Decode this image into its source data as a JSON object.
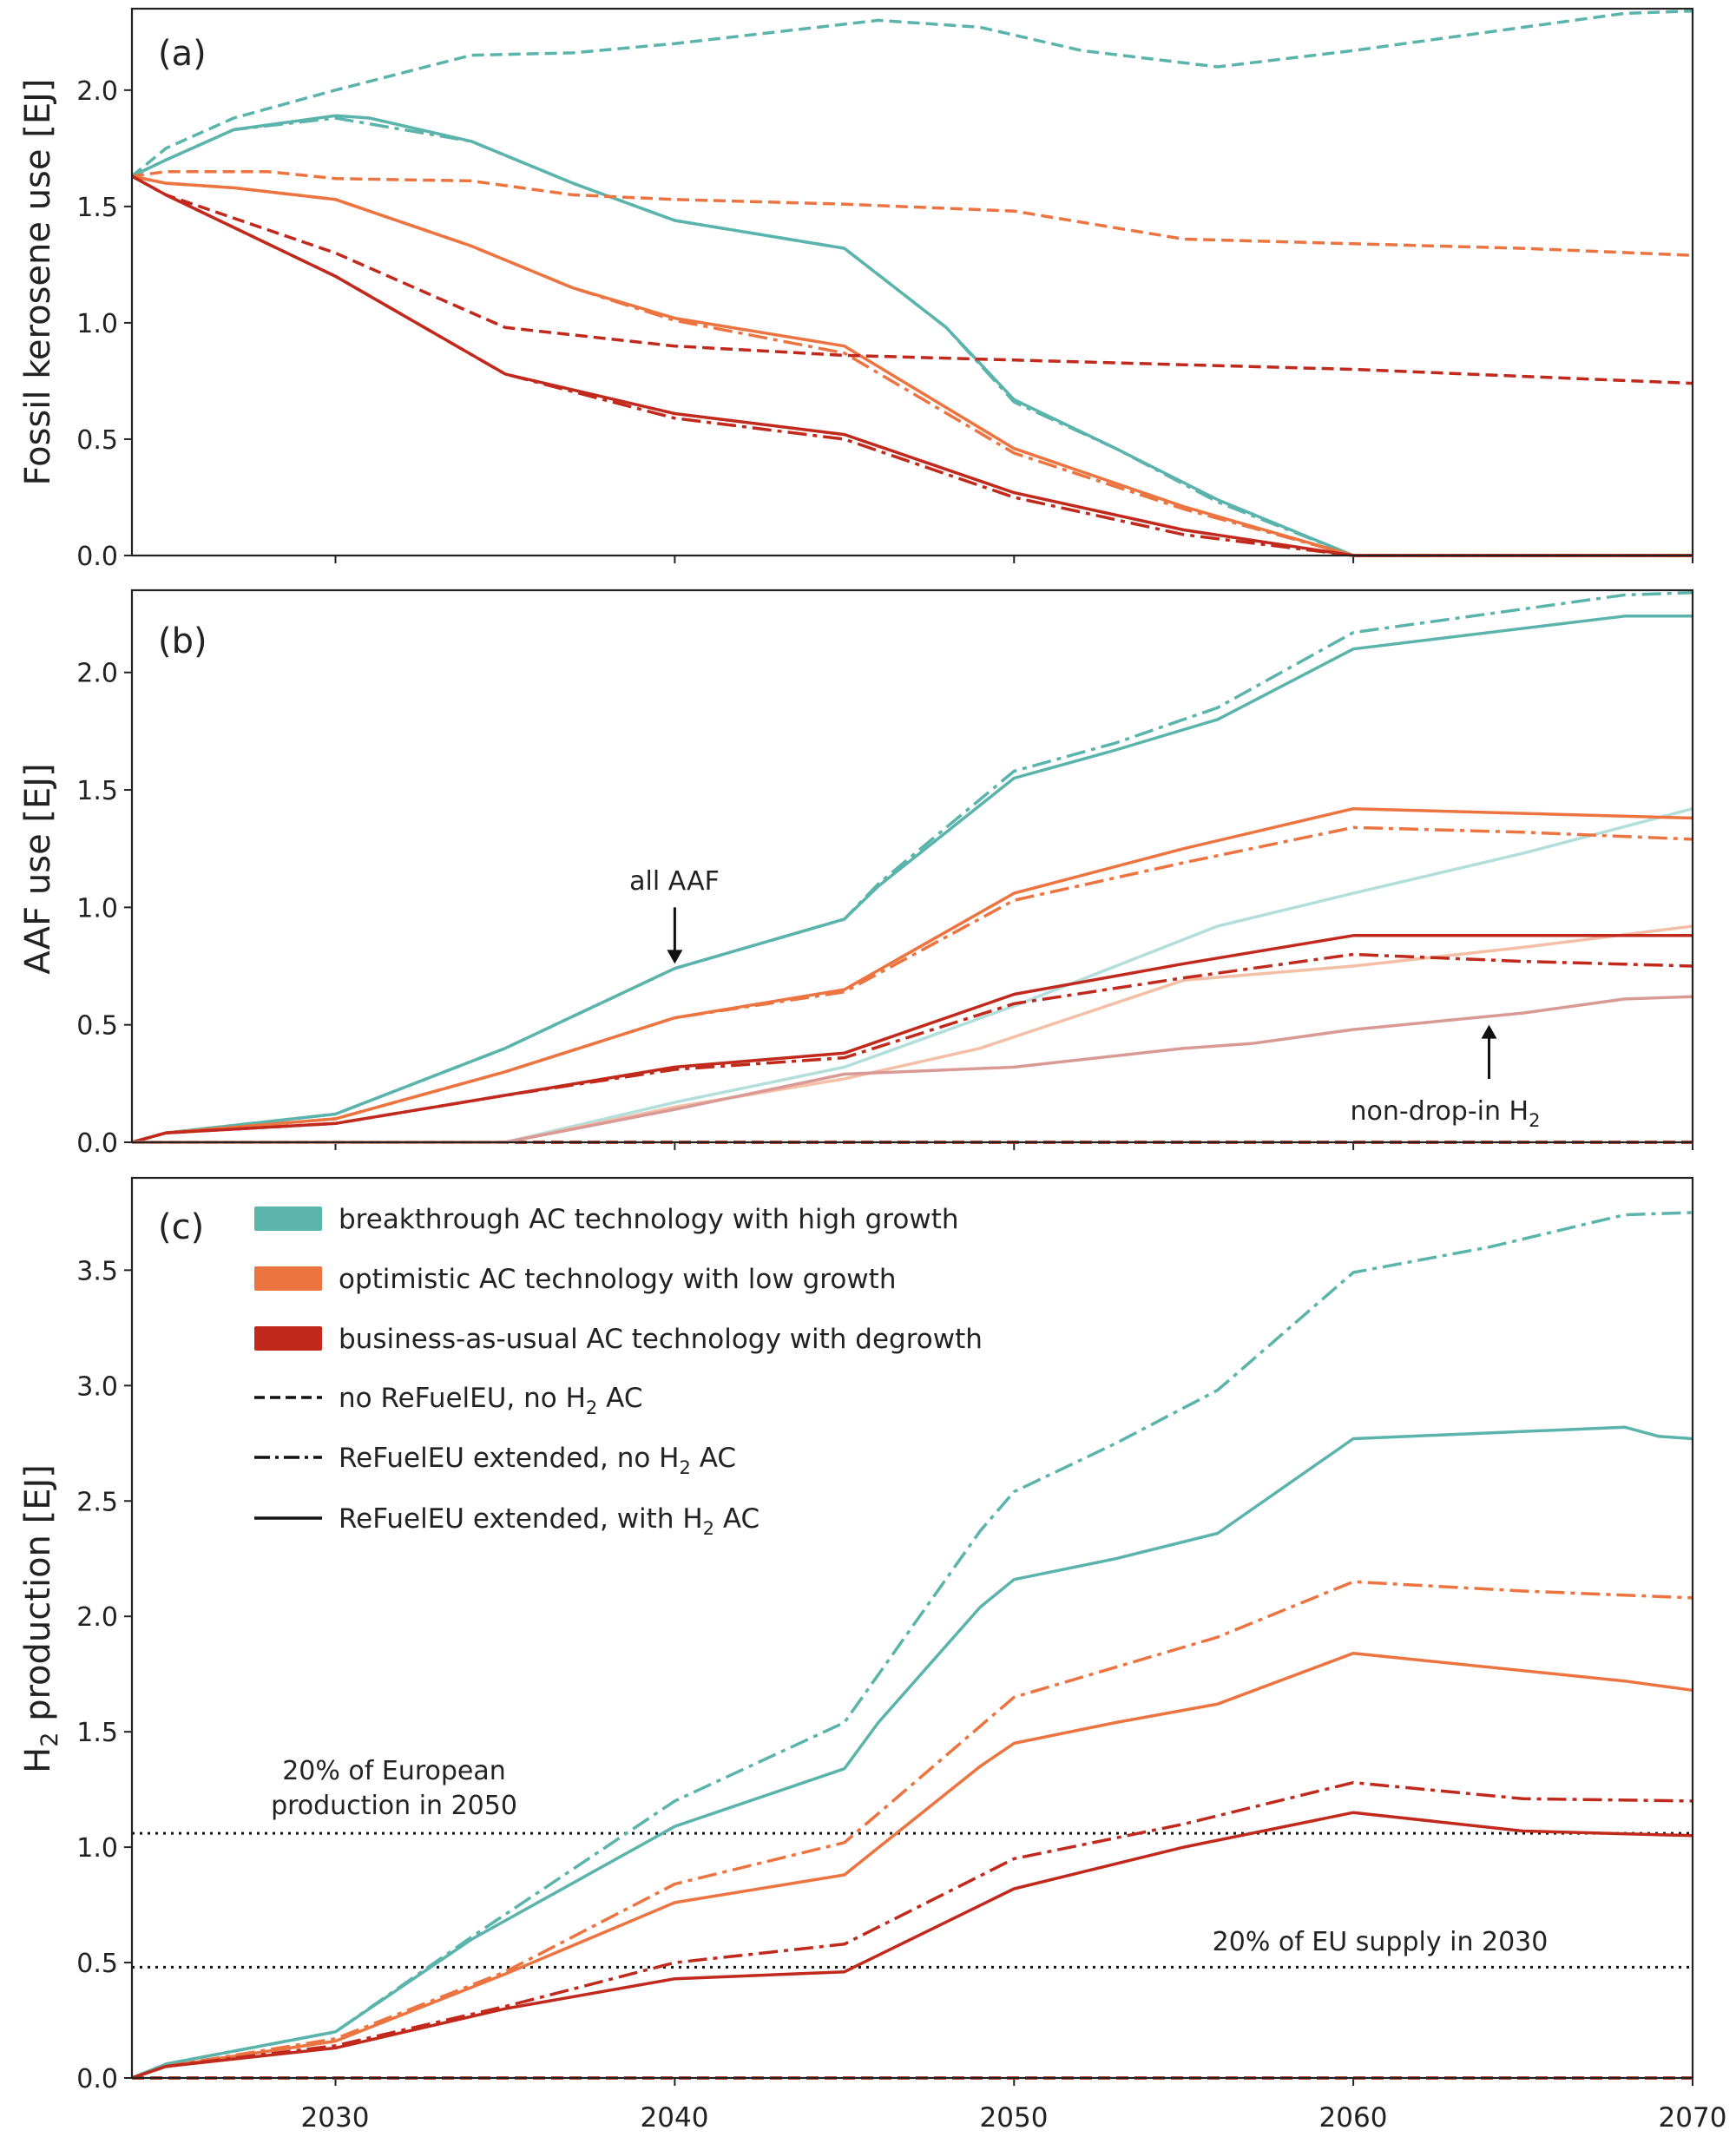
{
  "colors": {
    "breakthrough": "#5ab4ac",
    "breakthrough_faded": "#b2dedb",
    "optimistic": "#ec7440",
    "optimistic_faded": "#f4bfa6",
    "bau": "#c0291c",
    "bau_faded": "#d99a96",
    "axis": "#222222"
  },
  "x_tick_labels": [
    "2030",
    "2040",
    "2050",
    "2060",
    "2070"
  ],
  "legend": {
    "scenarios": [
      {
        "key": "breakthrough",
        "label": "breakthrough AC technology with high growth"
      },
      {
        "key": "optimistic",
        "label": "optimistic AC technology with low growth"
      },
      {
        "key": "bau",
        "label": "business-as-usual AC technology with degrowth"
      }
    ],
    "line_styles": [
      {
        "style": "dashed",
        "label_pre": "no ReFuelEU, no H",
        "label_sub": "2",
        "label_post": " AC"
      },
      {
        "style": "dashdot",
        "label_pre": "ReFuelEU extended, no H",
        "label_sub": "2",
        "label_post": " AC"
      },
      {
        "style": "solid",
        "label_pre": "ReFuelEU extended, with H",
        "label_sub": "2",
        "label_post": " AC"
      }
    ]
  },
  "chart_data": [
    {
      "type": "line",
      "panel": "(a)",
      "ylabel": "Fossil kerosene use [EJ]",
      "xlim": [
        2024,
        2070
      ],
      "ylim": [
        0,
        2.35
      ],
      "yticks": [
        "0.0",
        "0.5",
        "1.0",
        "1.5",
        "2.0"
      ],
      "series": [
        {
          "name": "breakthrough / no ReFuelEU, no H2 AC",
          "color": "breakthrough",
          "style": "dashed",
          "x": [
            2024,
            2025,
            2027,
            2030,
            2034,
            2037,
            2040,
            2046,
            2049,
            2052,
            2056,
            2060,
            2064,
            2068,
            2070
          ],
          "y": [
            1.63,
            1.75,
            1.88,
            2.0,
            2.15,
            2.16,
            2.2,
            2.3,
            2.27,
            2.17,
            2.1,
            2.17,
            2.25,
            2.33,
            2.34
          ]
        },
        {
          "name": "breakthrough / ReFuelEU extended, no H2 AC",
          "color": "breakthrough",
          "style": "dashdot",
          "x": [
            2024,
            2025,
            2027,
            2030,
            2034,
            2037,
            2040,
            2045,
            2048,
            2050,
            2053,
            2056,
            2060,
            2065,
            2070
          ],
          "y": [
            1.63,
            1.7,
            1.83,
            1.88,
            1.78,
            1.6,
            1.44,
            1.32,
            0.98,
            0.66,
            0.46,
            0.23,
            0.0,
            0.0,
            0.0
          ]
        },
        {
          "name": "breakthrough / ReFuelEU extended, with H2 AC",
          "color": "breakthrough",
          "style": "solid",
          "x": [
            2024,
            2025,
            2027,
            2030,
            2031,
            2034,
            2037,
            2040,
            2045,
            2048,
            2050,
            2053,
            2056,
            2060,
            2065,
            2070
          ],
          "y": [
            1.63,
            1.7,
            1.83,
            1.89,
            1.88,
            1.78,
            1.6,
            1.44,
            1.32,
            0.98,
            0.67,
            0.46,
            0.24,
            0.0,
            0.0,
            0.0
          ]
        },
        {
          "name": "optimistic / no ReFuelEU, no H2 AC",
          "color": "optimistic",
          "style": "dashed",
          "x": [
            2024,
            2025,
            2028,
            2030,
            2034,
            2037,
            2040,
            2045,
            2050,
            2055,
            2060,
            2065,
            2070
          ],
          "y": [
            1.63,
            1.65,
            1.65,
            1.62,
            1.61,
            1.55,
            1.53,
            1.51,
            1.48,
            1.36,
            1.34,
            1.32,
            1.29
          ]
        },
        {
          "name": "optimistic / ReFuelEU extended, no H2 AC",
          "color": "optimistic",
          "style": "dashdot",
          "x": [
            2024,
            2025,
            2027,
            2030,
            2034,
            2037,
            2040,
            2045,
            2050,
            2055,
            2060,
            2065,
            2070
          ],
          "y": [
            1.63,
            1.6,
            1.58,
            1.53,
            1.33,
            1.15,
            1.01,
            0.87,
            0.44,
            0.2,
            0.0,
            0.0,
            0.0
          ]
        },
        {
          "name": "optimistic / ReFuelEU extended, with H2 AC",
          "color": "optimistic",
          "style": "solid",
          "x": [
            2024,
            2025,
            2027,
            2030,
            2034,
            2037,
            2040,
            2045,
            2050,
            2055,
            2060,
            2065,
            2070
          ],
          "y": [
            1.63,
            1.6,
            1.58,
            1.53,
            1.33,
            1.15,
            1.02,
            0.9,
            0.46,
            0.21,
            0.0,
            0.0,
            0.0
          ]
        },
        {
          "name": "bau / no ReFuelEU, no H2 AC",
          "color": "bau",
          "style": "dashed",
          "x": [
            2024,
            2025,
            2030,
            2035,
            2040,
            2045,
            2050,
            2055,
            2060,
            2065,
            2070
          ],
          "y": [
            1.63,
            1.55,
            1.3,
            0.98,
            0.9,
            0.86,
            0.84,
            0.82,
            0.8,
            0.77,
            0.74
          ]
        },
        {
          "name": "bau / ReFuelEU extended, no H2 AC",
          "color": "bau",
          "style": "dashdot",
          "x": [
            2024,
            2025,
            2030,
            2035,
            2040,
            2045,
            2050,
            2055,
            2060,
            2065,
            2070
          ],
          "y": [
            1.63,
            1.55,
            1.2,
            0.78,
            0.59,
            0.5,
            0.25,
            0.09,
            0.0,
            0.0,
            0.0
          ]
        },
        {
          "name": "bau / ReFuelEU extended, with H2 AC",
          "color": "bau",
          "style": "solid",
          "x": [
            2024,
            2025,
            2030,
            2035,
            2040,
            2045,
            2050,
            2055,
            2060,
            2065,
            2070
          ],
          "y": [
            1.63,
            1.55,
            1.2,
            0.78,
            0.61,
            0.52,
            0.27,
            0.11,
            0.0,
            0.0,
            0.0
          ]
        }
      ]
    },
    {
      "type": "line",
      "panel": "(b)",
      "ylabel": "AAF use [EJ]",
      "xlim": [
        2024,
        2070
      ],
      "ylim": [
        0,
        2.35
      ],
      "yticks": [
        "0.0",
        "0.5",
        "1.0",
        "1.5",
        "2.0"
      ],
      "annotations": [
        {
          "id": "all_aaf",
          "text": "all AAF",
          "x": 2040,
          "y": 1.12,
          "arrow_from": 1.0,
          "arrow_to": 0.76
        },
        {
          "id": "non_drop_in",
          "text_pre": "non-drop-in H",
          "text_sub": "2",
          "x": 2064,
          "y": 0.08,
          "arrow_from": 0.27,
          "arrow_to": 0.5
        }
      ],
      "series": [
        {
          "name": "breakthrough / no ReFuelEU, no H2 AC",
          "color": "breakthrough",
          "style": "dashed",
          "x": [
            2024,
            2070
          ],
          "y": [
            0.0,
            0.0
          ]
        },
        {
          "name": "breakthrough / ReFuelEU extended, no H2 AC",
          "color": "breakthrough",
          "style": "dashdot",
          "x": [
            2024,
            2025,
            2030,
            2035,
            2040,
            2045,
            2046,
            2050,
            2053,
            2056,
            2060,
            2064,
            2068,
            2070
          ],
          "y": [
            0.0,
            0.04,
            0.12,
            0.4,
            0.74,
            0.95,
            1.1,
            1.58,
            1.7,
            1.85,
            2.17,
            2.25,
            2.33,
            2.34
          ]
        },
        {
          "name": "breakthrough / ReFuelEU extended, with H2 AC",
          "color": "breakthrough",
          "style": "solid",
          "x": [
            2024,
            2025,
            2030,
            2035,
            2040,
            2045,
            2046,
            2050,
            2053,
            2056,
            2060,
            2064,
            2068,
            2070
          ],
          "y": [
            0.0,
            0.04,
            0.12,
            0.4,
            0.74,
            0.95,
            1.09,
            1.55,
            1.67,
            1.8,
            2.1,
            2.17,
            2.24,
            2.24
          ]
        },
        {
          "name": "breakthrough / non-drop-in H2",
          "color": "breakthrough_faded",
          "style": "solid",
          "x": [
            2024,
            2035,
            2040,
            2045,
            2050,
            2056,
            2060,
            2065,
            2070
          ],
          "y": [
            0.0,
            0.0,
            0.17,
            0.32,
            0.58,
            0.92,
            1.06,
            1.23,
            1.42
          ]
        },
        {
          "name": "optimistic / no ReFuelEU, no H2 AC",
          "color": "optimistic",
          "style": "dashed",
          "x": [
            2024,
            2070
          ],
          "y": [
            0.0,
            0.0
          ]
        },
        {
          "name": "optimistic / ReFuelEU extended, no H2 AC",
          "color": "optimistic",
          "style": "dashdot",
          "x": [
            2024,
            2025,
            2030,
            2035,
            2040,
            2045,
            2050,
            2055,
            2060,
            2065,
            2070
          ],
          "y": [
            0.0,
            0.04,
            0.1,
            0.3,
            0.53,
            0.64,
            1.03,
            1.19,
            1.34,
            1.32,
            1.29
          ]
        },
        {
          "name": "optimistic / ReFuelEU extended, with H2 AC",
          "color": "optimistic",
          "style": "solid",
          "x": [
            2024,
            2025,
            2030,
            2035,
            2040,
            2045,
            2050,
            2055,
            2060,
            2065,
            2070
          ],
          "y": [
            0.0,
            0.04,
            0.1,
            0.3,
            0.53,
            0.65,
            1.06,
            1.25,
            1.42,
            1.4,
            1.38
          ]
        },
        {
          "name": "optimistic / non-drop-in H2",
          "color": "optimistic_faded",
          "style": "solid",
          "x": [
            2024,
            2035,
            2040,
            2045,
            2049,
            2055,
            2060,
            2065,
            2070
          ],
          "y": [
            0.0,
            0.0,
            0.15,
            0.27,
            0.4,
            0.69,
            0.75,
            0.83,
            0.92
          ]
        },
        {
          "name": "bau / no ReFuelEU, no H2 AC",
          "color": "bau",
          "style": "dashed",
          "x": [
            2024,
            2070
          ],
          "y": [
            0.0,
            0.0
          ]
        },
        {
          "name": "bau / ReFuelEU extended, no H2 AC",
          "color": "bau",
          "style": "dashdot",
          "x": [
            2024,
            2025,
            2030,
            2035,
            2040,
            2045,
            2050,
            2055,
            2060,
            2065,
            2070
          ],
          "y": [
            0.0,
            0.04,
            0.08,
            0.2,
            0.31,
            0.36,
            0.59,
            0.7,
            0.8,
            0.77,
            0.75
          ]
        },
        {
          "name": "bau / ReFuelEU extended, with H2 AC",
          "color": "bau",
          "style": "solid",
          "x": [
            2024,
            2025,
            2030,
            2035,
            2040,
            2045,
            2050,
            2055,
            2060,
            2065,
            2070
          ],
          "y": [
            0.0,
            0.04,
            0.08,
            0.2,
            0.32,
            0.38,
            0.63,
            0.76,
            0.88,
            0.88,
            0.88
          ]
        },
        {
          "name": "bau / non-drop-in H2",
          "color": "bau_faded",
          "style": "solid",
          "x": [
            2024,
            2035,
            2040,
            2045,
            2050,
            2055,
            2057,
            2060,
            2065,
            2068,
            2070
          ],
          "y": [
            0.0,
            0.0,
            0.14,
            0.29,
            0.32,
            0.4,
            0.42,
            0.48,
            0.55,
            0.61,
            0.62
          ]
        }
      ]
    },
    {
      "type": "line",
      "panel": "(c)",
      "ylabel_pre": "H",
      "ylabel_sub": "2",
      "ylabel_post": " production [EJ]",
      "xlim": [
        2024,
        2070
      ],
      "ylim": [
        0,
        3.9
      ],
      "yticks": [
        "0.0",
        "0.5",
        "1.0",
        "1.5",
        "2.0",
        "2.5",
        "3.0",
        "3.5"
      ],
      "reference_lines": [
        {
          "y": 1.06,
          "label_line1": "20% of European",
          "label_line2": "production in 2050",
          "x_label": 2028.5
        },
        {
          "y": 0.48,
          "label": "20% of EU supply in 2030",
          "x_label": 2060
        }
      ],
      "series": [
        {
          "name": "breakthrough / no ReFuelEU, no H2 AC",
          "color": "breakthrough",
          "style": "dashed",
          "x": [
            2024,
            2070
          ],
          "y": [
            0.0,
            0.0
          ]
        },
        {
          "name": "breakthrough / ReFuelEU extended, no H2 AC",
          "color": "breakthrough",
          "style": "dashdot",
          "x": [
            2024,
            2025,
            2030,
            2034,
            2040,
            2045,
            2049,
            2050,
            2053,
            2056,
            2060,
            2064,
            2068,
            2070
          ],
          "y": [
            0.0,
            0.06,
            0.2,
            0.61,
            1.2,
            1.54,
            2.37,
            2.54,
            2.75,
            2.98,
            3.49,
            3.6,
            3.74,
            3.75
          ]
        },
        {
          "name": "breakthrough / ReFuelEU extended, with H2 AC",
          "color": "breakthrough",
          "style": "solid",
          "x": [
            2024,
            2025,
            2030,
            2034,
            2040,
            2045,
            2046,
            2049,
            2050,
            2053,
            2056,
            2060,
            2068,
            2069,
            2070
          ],
          "y": [
            0.0,
            0.06,
            0.2,
            0.6,
            1.09,
            1.34,
            1.54,
            2.04,
            2.16,
            2.25,
            2.36,
            2.77,
            2.82,
            2.78,
            2.77
          ]
        },
        {
          "name": "optimistic / no ReFuelEU, no H2 AC",
          "color": "optimistic",
          "style": "dashed",
          "x": [
            2024,
            2070
          ],
          "y": [
            0.0,
            0.0
          ]
        },
        {
          "name": "optimistic / ReFuelEU extended, no H2 AC",
          "color": "optimistic",
          "style": "dashdot",
          "x": [
            2024,
            2025,
            2030,
            2035,
            2040,
            2045,
            2050,
            2053,
            2056,
            2060,
            2065,
            2070
          ],
          "y": [
            0.0,
            0.05,
            0.17,
            0.46,
            0.84,
            1.02,
            1.65,
            1.78,
            1.91,
            2.15,
            2.11,
            2.08
          ]
        },
        {
          "name": "optimistic / ReFuelEU extended, with H2 AC",
          "color": "optimistic",
          "style": "solid",
          "x": [
            2024,
            2025,
            2030,
            2035,
            2040,
            2045,
            2049,
            2050,
            2053,
            2056,
            2060,
            2068,
            2070
          ],
          "y": [
            0.0,
            0.05,
            0.16,
            0.45,
            0.76,
            0.88,
            1.35,
            1.45,
            1.54,
            1.62,
            1.84,
            1.72,
            1.68
          ]
        },
        {
          "name": "bau / no ReFuelEU, no H2 AC",
          "color": "bau",
          "style": "dashed",
          "x": [
            2024,
            2070
          ],
          "y": [
            0.0,
            0.0
          ]
        },
        {
          "name": "bau / ReFuelEU extended, no H2 AC",
          "color": "bau",
          "style": "dashdot",
          "x": [
            2024,
            2025,
            2030,
            2035,
            2040,
            2045,
            2050,
            2055,
            2060,
            2065,
            2070
          ],
          "y": [
            0.0,
            0.05,
            0.14,
            0.31,
            0.5,
            0.58,
            0.95,
            1.1,
            1.28,
            1.21,
            1.2
          ]
        },
        {
          "name": "bau / ReFuelEU extended, with H2 AC",
          "color": "bau",
          "style": "solid",
          "x": [
            2024,
            2025,
            2030,
            2035,
            2040,
            2045,
            2050,
            2055,
            2060,
            2065,
            2070
          ],
          "y": [
            0.0,
            0.05,
            0.13,
            0.3,
            0.43,
            0.46,
            0.82,
            1.0,
            1.15,
            1.07,
            1.05
          ]
        }
      ]
    }
  ]
}
